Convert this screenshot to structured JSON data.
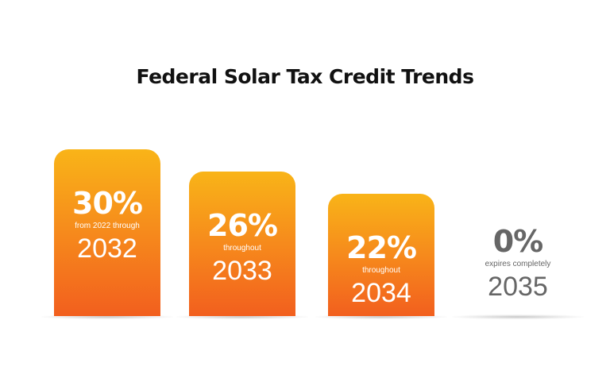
{
  "chart_data": {
    "type": "bar",
    "title": "Federal Solar Tax Credit Trends",
    "categories": [
      "2032",
      "2033",
      "2034",
      "2035"
    ],
    "values": [
      30,
      26,
      22,
      0
    ],
    "value_labels": [
      "30%",
      "26%",
      "22%",
      "0%"
    ],
    "sublabels": [
      "from 2022 through",
      "throughout",
      "throughout",
      "expires completely"
    ],
    "year_labels": [
      "2032",
      "2033",
      "2034",
      "2035"
    ],
    "ylim": [
      0,
      30
    ],
    "grid": false,
    "colors": {
      "bar_top": "#f9b418",
      "bar_bottom": "#f25f1e",
      "zero_text": "#666666"
    }
  }
}
